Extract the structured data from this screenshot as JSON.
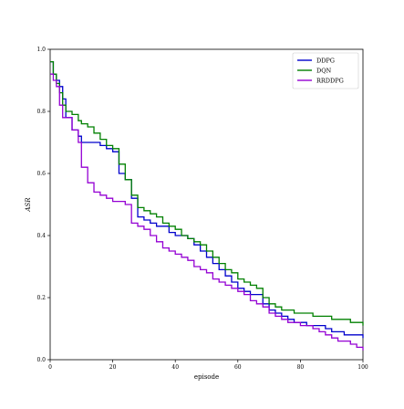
{
  "chart_data": {
    "type": "line",
    "title": "",
    "xlabel": "episode",
    "ylabel": "ASR",
    "xlim": [
      0,
      100
    ],
    "ylim": [
      0.0,
      1.0
    ],
    "xticks": [
      0,
      20,
      40,
      60,
      80,
      100
    ],
    "xtick_labels": [
      "0",
      "20",
      "40",
      "60",
      "80",
      "100"
    ],
    "yticks": [
      0.0,
      0.2,
      0.4,
      0.6,
      0.8,
      1.0
    ],
    "ytick_labels": [
      "0.0",
      "0.2",
      "0.4",
      "0.6",
      "0.8",
      "1.0"
    ],
    "grid": false,
    "legend_position": "top-right",
    "series": [
      {
        "name": "DDPG",
        "color": "#0000cc",
        "x": [
          0,
          1,
          2,
          3,
          4,
          5,
          7,
          9,
          10,
          12,
          14,
          16,
          18,
          20,
          22,
          24,
          26,
          28,
          30,
          32,
          34,
          36,
          38,
          40,
          42,
          44,
          46,
          48,
          50,
          52,
          54,
          56,
          58,
          60,
          62,
          64,
          66,
          68,
          70,
          72,
          74,
          76,
          78,
          80,
          82,
          84,
          86,
          88,
          90,
          92,
          94,
          96,
          98,
          100
        ],
        "y": [
          0.96,
          0.92,
          0.9,
          0.88,
          0.84,
          0.78,
          0.74,
          0.72,
          0.7,
          0.7,
          0.7,
          0.69,
          0.68,
          0.67,
          0.6,
          0.58,
          0.52,
          0.46,
          0.45,
          0.44,
          0.43,
          0.43,
          0.41,
          0.4,
          0.4,
          0.39,
          0.37,
          0.35,
          0.33,
          0.31,
          0.29,
          0.27,
          0.25,
          0.23,
          0.22,
          0.21,
          0.21,
          0.18,
          0.16,
          0.15,
          0.14,
          0.13,
          0.12,
          0.12,
          0.11,
          0.11,
          0.11,
          0.1,
          0.09,
          0.09,
          0.08,
          0.08,
          0.08,
          0.07
        ]
      },
      {
        "name": "DQN",
        "color": "#008000",
        "x": [
          0,
          1,
          2,
          3,
          4,
          5,
          7,
          9,
          10,
          12,
          14,
          16,
          18,
          20,
          22,
          24,
          26,
          28,
          30,
          32,
          34,
          36,
          38,
          40,
          42,
          44,
          46,
          48,
          50,
          52,
          54,
          56,
          58,
          60,
          62,
          64,
          66,
          68,
          70,
          72,
          74,
          76,
          78,
          80,
          82,
          84,
          86,
          88,
          90,
          92,
          94,
          96,
          98,
          100
        ],
        "y": [
          0.96,
          0.92,
          0.89,
          0.86,
          0.82,
          0.8,
          0.79,
          0.77,
          0.76,
          0.75,
          0.73,
          0.71,
          0.69,
          0.68,
          0.63,
          0.58,
          0.53,
          0.49,
          0.48,
          0.47,
          0.46,
          0.44,
          0.43,
          0.42,
          0.4,
          0.39,
          0.38,
          0.37,
          0.35,
          0.33,
          0.31,
          0.29,
          0.28,
          0.26,
          0.25,
          0.24,
          0.23,
          0.2,
          0.18,
          0.17,
          0.16,
          0.16,
          0.15,
          0.15,
          0.15,
          0.14,
          0.14,
          0.14,
          0.13,
          0.13,
          0.13,
          0.12,
          0.12,
          0.11
        ]
      },
      {
        "name": "RRDDPG",
        "color": "#9400d3",
        "x": [
          0,
          1,
          2,
          3,
          4,
          5,
          7,
          9,
          10,
          12,
          14,
          16,
          18,
          20,
          22,
          24,
          26,
          28,
          30,
          32,
          34,
          36,
          38,
          40,
          42,
          44,
          46,
          48,
          50,
          52,
          54,
          56,
          58,
          60,
          62,
          64,
          66,
          68,
          70,
          72,
          74,
          76,
          78,
          80,
          82,
          84,
          86,
          88,
          90,
          92,
          94,
          96,
          98,
          100
        ],
        "y": [
          0.92,
          0.9,
          0.88,
          0.82,
          0.78,
          0.78,
          0.74,
          0.7,
          0.62,
          0.57,
          0.54,
          0.53,
          0.52,
          0.51,
          0.51,
          0.5,
          0.44,
          0.43,
          0.42,
          0.4,
          0.38,
          0.36,
          0.35,
          0.34,
          0.33,
          0.32,
          0.3,
          0.29,
          0.28,
          0.26,
          0.25,
          0.24,
          0.23,
          0.22,
          0.21,
          0.19,
          0.18,
          0.17,
          0.15,
          0.14,
          0.13,
          0.12,
          0.12,
          0.11,
          0.11,
          0.1,
          0.09,
          0.08,
          0.07,
          0.06,
          0.06,
          0.05,
          0.04,
          0.03
        ]
      }
    ]
  }
}
